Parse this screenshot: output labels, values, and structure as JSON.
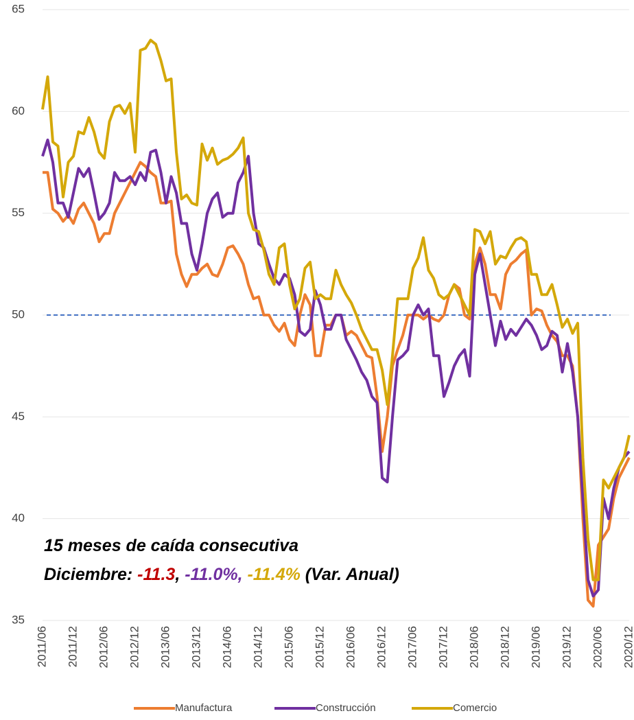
{
  "chart_data": {
    "type": "line",
    "categories": [
      "2011/06",
      null,
      null,
      null,
      null,
      null,
      "2011/12",
      null,
      null,
      null,
      null,
      null,
      "2012/06",
      null,
      null,
      null,
      null,
      null,
      "2012/12",
      null,
      null,
      null,
      null,
      null,
      "2013/06",
      null,
      null,
      null,
      null,
      null,
      "2013/12",
      null,
      null,
      null,
      null,
      null,
      "2014/06",
      null,
      null,
      null,
      null,
      null,
      "2014/12",
      null,
      null,
      null,
      null,
      null,
      "2015/06",
      null,
      null,
      null,
      null,
      null,
      "2015/12",
      null,
      null,
      null,
      null,
      null,
      "2016/06",
      null,
      null,
      null,
      null,
      null,
      "2016/12",
      null,
      null,
      null,
      null,
      null,
      "2017/06",
      null,
      null,
      null,
      null,
      null,
      "2017/12",
      null,
      null,
      null,
      null,
      null,
      "2018/06",
      null,
      null,
      null,
      null,
      null,
      "2018/12",
      null,
      null,
      null,
      null,
      null,
      "2019/06",
      null,
      null,
      null,
      null,
      null,
      "2019/12",
      null,
      null,
      null,
      null,
      null,
      "2020/06",
      null,
      null,
      null,
      null,
      null,
      "2020/12"
    ],
    "series": [
      {
        "name": "Manufactura",
        "color": "#ed7d31",
        "values": [
          57.0,
          57.0,
          55.2,
          55.0,
          54.6,
          54.9,
          54.5,
          55.2,
          55.5,
          55.0,
          54.5,
          53.6,
          54.0,
          54.0,
          55.0,
          55.5,
          56.0,
          56.5,
          57.0,
          57.5,
          57.3,
          57.0,
          56.8,
          55.5,
          55.5,
          55.6,
          53.0,
          52.0,
          51.4,
          52.0,
          52.0,
          52.3,
          52.5,
          52.0,
          51.9,
          52.5,
          53.3,
          53.4,
          53.0,
          52.5,
          51.5,
          50.8,
          50.9,
          50.0,
          50.0,
          49.5,
          49.2,
          49.6,
          48.8,
          48.5,
          50.0,
          51.0,
          50.5,
          48.0,
          48.0,
          49.5,
          49.5,
          50.0,
          50.0,
          49.0,
          49.2,
          49.0,
          48.5,
          48.0,
          47.9,
          46.0,
          43.3,
          45.0,
          47.5,
          48.3,
          49.0,
          50.0,
          50.0,
          50.0,
          49.8,
          50.0,
          49.8,
          49.7,
          50.0,
          51.0,
          51.5,
          51.3,
          50.0,
          49.8,
          52.5,
          53.3,
          52.5,
          51.0,
          51.0,
          50.3,
          52.0,
          52.5,
          52.7,
          53.0,
          53.2,
          50.0,
          50.3,
          50.2,
          49.5,
          49.0,
          48.7,
          48.0,
          48.0,
          47.5,
          45.0,
          40.0,
          36.0,
          35.7,
          38.7,
          39.1,
          39.5,
          41.0,
          42.0,
          42.5,
          43.0
        ]
      },
      {
        "name": "Construcción",
        "color": "#7030a0",
        "values": [
          57.8,
          58.6,
          57.5,
          55.5,
          55.5,
          54.8,
          56.0,
          57.2,
          56.8,
          57.2,
          56.0,
          54.7,
          55.0,
          55.5,
          57.0,
          56.6,
          56.6,
          56.8,
          56.4,
          57.0,
          56.6,
          58.0,
          58.1,
          57.0,
          55.5,
          56.8,
          56.0,
          54.5,
          54.5,
          53.0,
          52.2,
          53.5,
          55.0,
          55.7,
          56.0,
          54.8,
          55.0,
          55.0,
          56.5,
          57.0,
          57.8,
          55.0,
          53.5,
          53.3,
          52.5,
          51.8,
          51.5,
          52.0,
          51.8,
          51.0,
          49.2,
          49.0,
          49.3,
          51.2,
          50.5,
          49.3,
          49.3,
          50.0,
          50.0,
          48.8,
          48.3,
          47.8,
          47.2,
          46.8,
          46.0,
          45.7,
          42.0,
          41.8,
          45.0,
          47.8,
          48.0,
          48.3,
          50.0,
          50.5,
          50.0,
          50.3,
          48.0,
          48.0,
          46.0,
          46.7,
          47.5,
          48.0,
          48.3,
          47.0,
          52.0,
          53.0,
          51.5,
          50.0,
          48.5,
          49.7,
          48.8,
          49.3,
          49.0,
          49.4,
          49.8,
          49.5,
          49.0,
          48.3,
          48.5,
          49.2,
          49.0,
          47.2,
          48.6,
          47.2,
          45.0,
          41.0,
          37.0,
          36.2,
          36.5,
          41.0,
          40.0,
          41.5,
          42.5,
          43.0,
          43.3
        ]
      },
      {
        "name": "Comercio",
        "color": "#d4a80a",
        "values": [
          60.1,
          61.7,
          58.5,
          58.3,
          55.8,
          57.5,
          57.8,
          59.0,
          58.9,
          59.7,
          59.0,
          58.0,
          57.7,
          59.5,
          60.2,
          60.3,
          59.9,
          60.4,
          58.0,
          63.0,
          63.1,
          63.5,
          63.3,
          62.5,
          61.5,
          61.6,
          58.0,
          55.7,
          55.9,
          55.5,
          55.4,
          58.4,
          57.6,
          58.2,
          57.4,
          57.6,
          57.7,
          57.9,
          58.2,
          58.7,
          55.0,
          54.2,
          54.1,
          53.2,
          52.0,
          51.5,
          53.3,
          53.5,
          51.5,
          50.3,
          50.8,
          52.3,
          52.6,
          50.8,
          51.0,
          50.8,
          50.8,
          52.2,
          51.5,
          51.0,
          50.6,
          50.0,
          49.3,
          48.8,
          48.3,
          48.3,
          47.3,
          45.6,
          48.0,
          50.8,
          50.8,
          50.8,
          52.3,
          52.8,
          53.8,
          52.2,
          51.8,
          51.0,
          50.8,
          51.0,
          51.5,
          51.0,
          50.5,
          50.0,
          54.2,
          54.1,
          53.5,
          54.1,
          52.5,
          52.9,
          52.8,
          53.3,
          53.7,
          53.8,
          53.6,
          52.0,
          52.0,
          51.0,
          51.0,
          51.5,
          50.5,
          49.4,
          49.8,
          49.1,
          49.6,
          43.0,
          39.0,
          37.0,
          37.0,
          41.9,
          41.5,
          42.0,
          42.5,
          43.0,
          44.1
        ]
      }
    ],
    "ylim": [
      35,
      65
    ],
    "yticks": [
      35,
      40,
      45,
      50,
      55,
      60,
      65
    ],
    "grid": true,
    "reference_line": {
      "value": 50,
      "color": "#4472c4"
    },
    "legend": "bottom",
    "annotation": {
      "lines": [
        {
          "segments": [
            {
              "text": "15 meses de caída consecutiva",
              "color": "#000000"
            }
          ]
        },
        {
          "segments": [
            {
              "text": "Diciembre: ",
              "color": "#000000"
            },
            {
              "text": "-11.3",
              "color": "#c00000"
            },
            {
              "text": ", ",
              "color": "#000000"
            },
            {
              "text": "-11.0%,",
              "color": "#7030a0"
            },
            {
              "text": " ",
              "color": "#000000"
            },
            {
              "text": "-11.4%",
              "color": "#d4a80a"
            },
            {
              "text": " (Var. Anual)",
              "color": "#000000"
            }
          ]
        }
      ]
    }
  }
}
